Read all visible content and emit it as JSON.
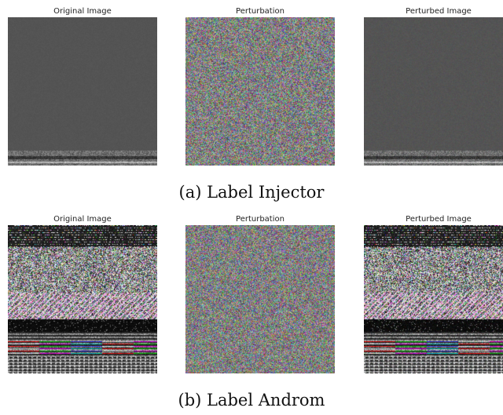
{
  "rows": [
    {
      "panels": [
        {
          "title": "Original Image"
        },
        {
          "title": "Perturbation"
        },
        {
          "title": "Perturbed Image"
        }
      ],
      "caption": "(a) Label Injector"
    },
    {
      "panels": [
        {
          "title": "Original Image"
        },
        {
          "title": "Perturbation"
        },
        {
          "title": "Perturbed Image"
        }
      ],
      "caption": "(b) Label Androm"
    }
  ]
}
